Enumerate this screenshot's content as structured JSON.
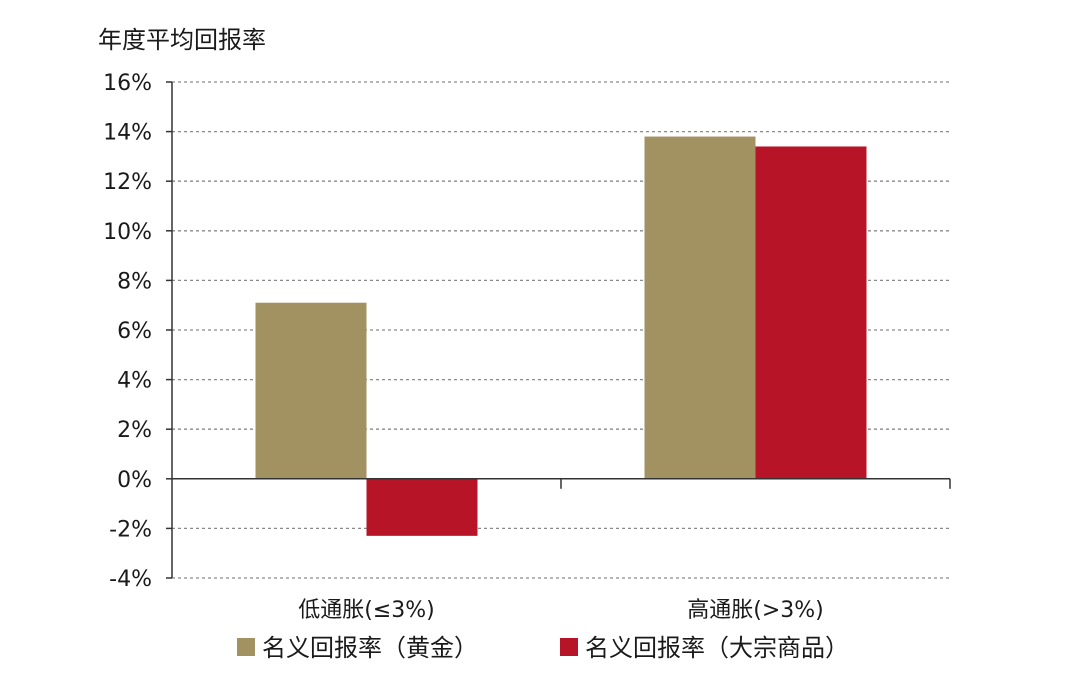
{
  "chart_data": {
    "type": "bar",
    "ylabel": "年度平均回报率",
    "categories": [
      "低通胀(≤3%)",
      "高通胀(>3%)"
    ],
    "series": [
      {
        "name": "名义回报率（黄金）",
        "values": [
          7.1,
          13.8
        ],
        "color": "#a29161"
      },
      {
        "name": "名义回报率（大宗商品）",
        "values": [
          -2.3,
          13.4
        ],
        "color": "#b81428"
      }
    ],
    "ylim": [
      -4,
      16
    ],
    "yticks": [
      -4,
      -2,
      0,
      2,
      4,
      6,
      8,
      10,
      12,
      14,
      16
    ],
    "ytick_labels": [
      "-4%",
      "-2%",
      "0%",
      "2%",
      "4%",
      "6%",
      "8%",
      "10%",
      "12%",
      "14%",
      "16%"
    ],
    "grid": true,
    "legend_position": "bottom"
  }
}
